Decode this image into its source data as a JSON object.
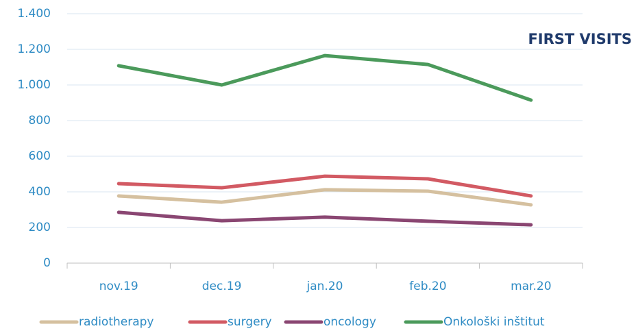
{
  "chart_data": {
    "type": "line",
    "title": "FIRST VISITS",
    "categories": [
      "nov.19",
      "dec.19",
      "jan.20",
      "feb.20",
      "mar.20"
    ],
    "series": [
      {
        "name": "radiotherapy",
        "color": "#d5c09f",
        "values": [
          377,
          342,
          412,
          404,
          327
        ]
      },
      {
        "name": "surgery",
        "color": "#d25a63",
        "values": [
          446,
          423,
          488,
          473,
          377
        ]
      },
      {
        "name": "oncology",
        "color": "#8a4672",
        "values": [
          285,
          238,
          258,
          235,
          215
        ]
      },
      {
        "name": "Onkološki inštitut",
        "color": "#4b9a5b",
        "values": [
          1108,
          1000,
          1165,
          1115,
          915
        ]
      }
    ],
    "ylim": [
      0,
      1400
    ],
    "yticks": [
      0,
      200,
      400,
      600,
      800,
      {
        "value": 1000,
        "label": "1.000"
      },
      {
        "value": 1200,
        "label": "1.200"
      },
      {
        "value": 1400,
        "label": "1.400"
      }
    ],
    "grid": true
  }
}
